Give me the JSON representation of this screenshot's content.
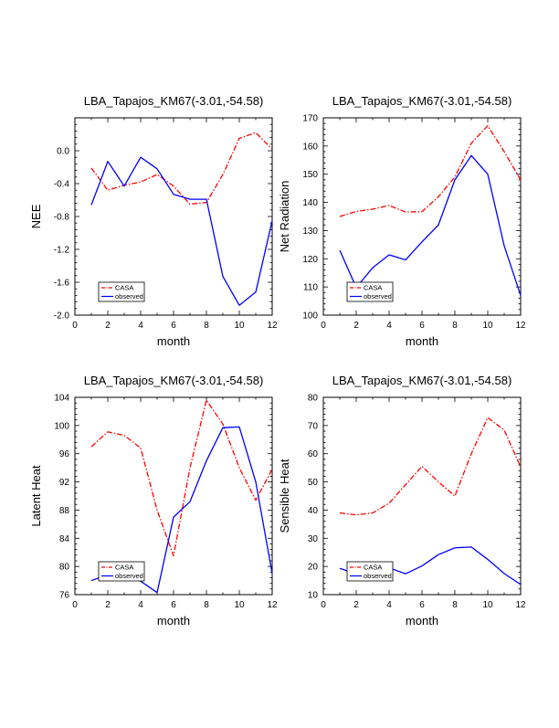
{
  "chart_data": [
    {
      "type": "line",
      "title": "LBA_Tapajos_KM67(-3.01,-54.58)",
      "xlabel": "month",
      "ylabel": "NEE",
      "xlim": [
        0,
        12
      ],
      "ylim": [
        -2.0,
        0.4
      ],
      "xticks": [
        0,
        2,
        4,
        6,
        8,
        10,
        12
      ],
      "xtick_labels": [
        "0",
        "2",
        "4",
        "6",
        "8",
        "10",
        "12"
      ],
      "yticks": [
        -2.0,
        -1.6,
        -1.2,
        -0.8,
        -0.4,
        0.0
      ],
      "ytick_labels": [
        "-2.0",
        "-1.6",
        "-1.2",
        "-0.8",
        "-0.4",
        "0.0"
      ],
      "x": [
        1,
        2,
        3,
        4,
        5,
        6,
        7,
        8,
        9,
        10,
        11,
        12
      ],
      "series": [
        {
          "name": "CASA",
          "color": "#ff0000",
          "dash": true,
          "values": [
            -0.21,
            -0.48,
            -0.42,
            -0.38,
            -0.29,
            -0.43,
            -0.65,
            -0.63,
            -0.29,
            0.15,
            0.22,
            0.02
          ]
        },
        {
          "name": "observed",
          "color": "#0000ff",
          "dash": false,
          "values": [
            -0.66,
            -0.13,
            -0.43,
            -0.08,
            -0.22,
            -0.53,
            -0.59,
            -0.59,
            -1.53,
            -1.88,
            -1.72,
            -0.85
          ]
        }
      ],
      "legend": "bottom-left"
    },
    {
      "type": "line",
      "title": "LBA_Tapajos_KM67(-3.01,-54.58)",
      "xlabel": "month",
      "ylabel": "Net Radiation",
      "xlim": [
        0,
        12
      ],
      "ylim": [
        100,
        170
      ],
      "xticks": [
        0,
        2,
        4,
        6,
        8,
        10,
        12
      ],
      "xtick_labels": [
        "0",
        "2",
        "4",
        "6",
        "8",
        "10",
        "12"
      ],
      "yticks": [
        100,
        110,
        120,
        130,
        140,
        150,
        160,
        170
      ],
      "ytick_labels": [
        "100",
        "110",
        "120",
        "130",
        "140",
        "150",
        "160",
        "170"
      ],
      "x": [
        1,
        2,
        3,
        4,
        5,
        6,
        7,
        8,
        9,
        10,
        11,
        12
      ],
      "series": [
        {
          "name": "CASA",
          "color": "#ff0000",
          "dash": true,
          "values": [
            135,
            136.8,
            137.6,
            138.9,
            136.6,
            136.7,
            142,
            149,
            161,
            167.2,
            158,
            148
          ]
        },
        {
          "name": "observed",
          "color": "#0000ff",
          "dash": false,
          "values": [
            123,
            109.8,
            116.8,
            121.4,
            119.6,
            126,
            132,
            148,
            156.6,
            150,
            124.6,
            107
          ]
        }
      ],
      "legend": "bottom-left"
    },
    {
      "type": "line",
      "title": "LBA_Tapajos_KM67(-3.01,-54.58)",
      "xlabel": "month",
      "ylabel": "Latent Heat",
      "xlim": [
        0,
        12
      ],
      "ylim": [
        76,
        104
      ],
      "xticks": [
        0,
        2,
        4,
        6,
        8,
        10,
        12
      ],
      "xtick_labels": [
        "0",
        "2",
        "4",
        "6",
        "8",
        "10",
        "12"
      ],
      "yticks": [
        76,
        80,
        84,
        88,
        92,
        96,
        100,
        104
      ],
      "ytick_labels": [
        "76",
        "80",
        "84",
        "88",
        "92",
        "96",
        "100",
        "104"
      ],
      "x": [
        1,
        2,
        3,
        4,
        5,
        6,
        7,
        8,
        9,
        10,
        11,
        12
      ],
      "series": [
        {
          "name": "CASA",
          "color": "#ff0000",
          "dash": true,
          "values": [
            97,
            99.1,
            98.6,
            96.8,
            88,
            81.5,
            94,
            103.6,
            100.2,
            94,
            89.4,
            93.8
          ]
        },
        {
          "name": "observed",
          "color": "#0000ff",
          "dash": false,
          "values": [
            78,
            78.8,
            80.3,
            77.9,
            76.3,
            87,
            89.2,
            95,
            99.7,
            99.8,
            92,
            79
          ]
        }
      ],
      "legend": "bottom-left"
    },
    {
      "type": "line",
      "title": "LBA_Tapajos_KM67(-3.01,-54.58)",
      "xlabel": "month",
      "ylabel": "Sensible Heat",
      "xlim": [
        0,
        12
      ],
      "ylim": [
        10,
        80
      ],
      "xticks": [
        0,
        2,
        4,
        6,
        8,
        10,
        12
      ],
      "xtick_labels": [
        "0",
        "2",
        "4",
        "6",
        "8",
        "10",
        "12"
      ],
      "yticks": [
        10,
        20,
        30,
        40,
        50,
        60,
        70,
        80
      ],
      "ytick_labels": [
        "10",
        "20",
        "30",
        "40",
        "50",
        "60",
        "70",
        "80"
      ],
      "x": [
        1,
        2,
        3,
        4,
        5,
        6,
        7,
        8,
        9,
        10,
        11,
        12
      ],
      "series": [
        {
          "name": "CASA",
          "color": "#ff0000",
          "dash": true,
          "values": [
            39,
            38.3,
            39,
            42.4,
            49,
            55.5,
            50,
            45,
            60,
            72.8,
            68.4,
            55.3
          ]
        },
        {
          "name": "observed",
          "color": "#0000ff",
          "dash": false,
          "values": [
            19.3,
            17.4,
            17.6,
            19.5,
            17.4,
            20.2,
            24.2,
            26.6,
            26.9,
            22.5,
            17.5,
            13.6
          ]
        }
      ],
      "legend": "bottom-left"
    }
  ]
}
